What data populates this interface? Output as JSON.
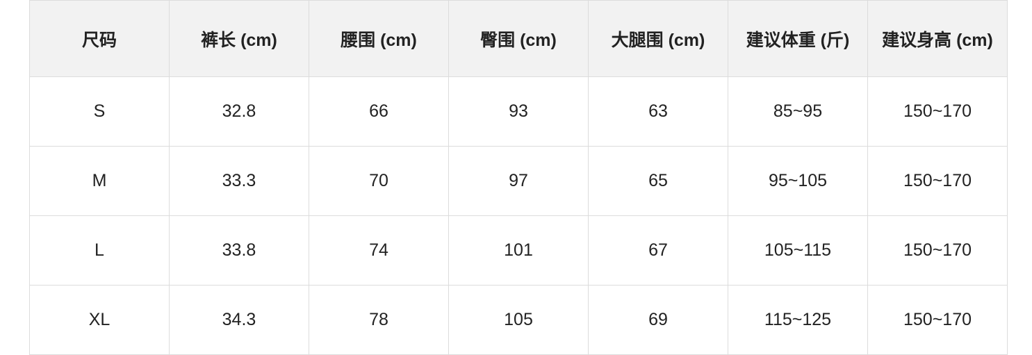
{
  "table": {
    "header": [
      "尺码",
      "裤长 (cm)",
      "腰围 (cm)",
      "臀围 (cm)",
      "大腿围 (cm)",
      "建议体重 (斤)",
      "建议身高 (cm)"
    ],
    "rows": [
      [
        "S",
        "32.8",
        "66",
        "93",
        "63",
        "85~95",
        "150~170"
      ],
      [
        "M",
        "33.3",
        "70",
        "97",
        "65",
        "95~105",
        "150~170"
      ],
      [
        "L",
        "33.8",
        "74",
        "101",
        "67",
        "105~115",
        "150~170"
      ],
      [
        "XL",
        "34.3",
        "78",
        "105",
        "69",
        "115~125",
        "150~170"
      ]
    ]
  }
}
